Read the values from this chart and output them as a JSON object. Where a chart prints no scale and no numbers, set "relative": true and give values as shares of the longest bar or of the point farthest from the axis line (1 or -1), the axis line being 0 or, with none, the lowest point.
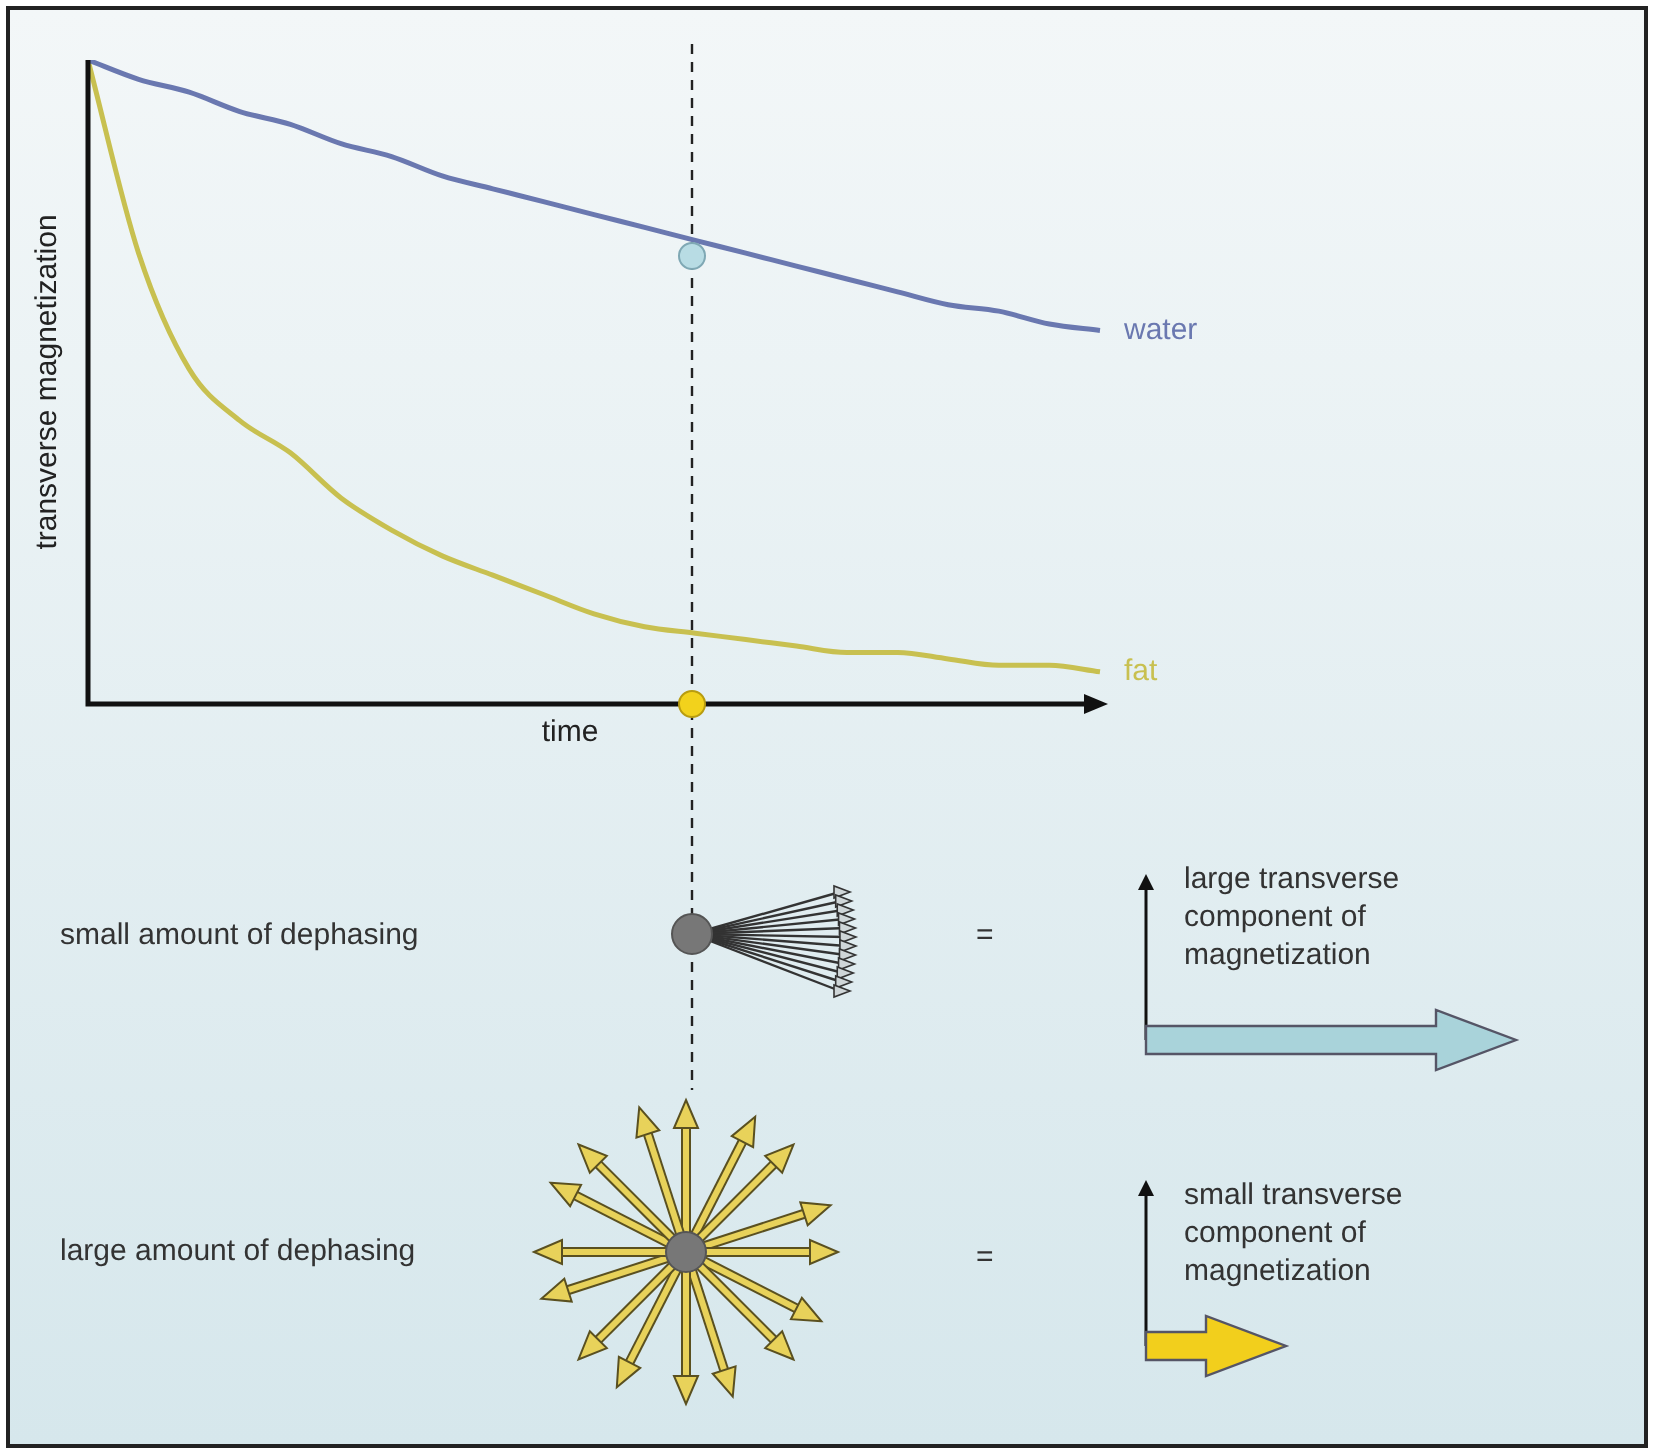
{
  "chart_data": {
    "type": "line",
    "relative": true,
    "marker": "none",
    "xlabel": "time",
    "ylabel": "transverse magnetization",
    "categories": [
      null,
      null,
      null,
      null,
      null,
      null,
      null,
      null,
      null,
      null,
      null,
      null,
      null,
      null,
      null,
      null,
      null,
      null,
      null,
      null,
      null
    ],
    "series": [
      {
        "name": "water",
        "color": "#6a78b0",
        "values": [
          1,
          0.97,
          0.95,
          0.92,
          0.9,
          0.87,
          0.85,
          0.82,
          0.8,
          0.78,
          0.76,
          0.74,
          0.72,
          0.7,
          0.68,
          0.66,
          0.64,
          0.62,
          0.61,
          0.59,
          0.58
        ]
      },
      {
        "name": "fat",
        "color": "#c8c050",
        "values": [
          1,
          0.7,
          0.52,
          0.44,
          0.39,
          0.32,
          0.27,
          0.23,
          0.2,
          0.17,
          0.14,
          0.12,
          0.11,
          0.1,
          0.09,
          0.08,
          0.08,
          0.07,
          0.06,
          0.06,
          0.05
        ]
      }
    ],
    "annotations": [
      "small amount of dephasing",
      "=",
      "large transverse component of magnetization",
      "large amount of dephasing",
      "=",
      "small transverse component of magnetization"
    ]
  }
}
